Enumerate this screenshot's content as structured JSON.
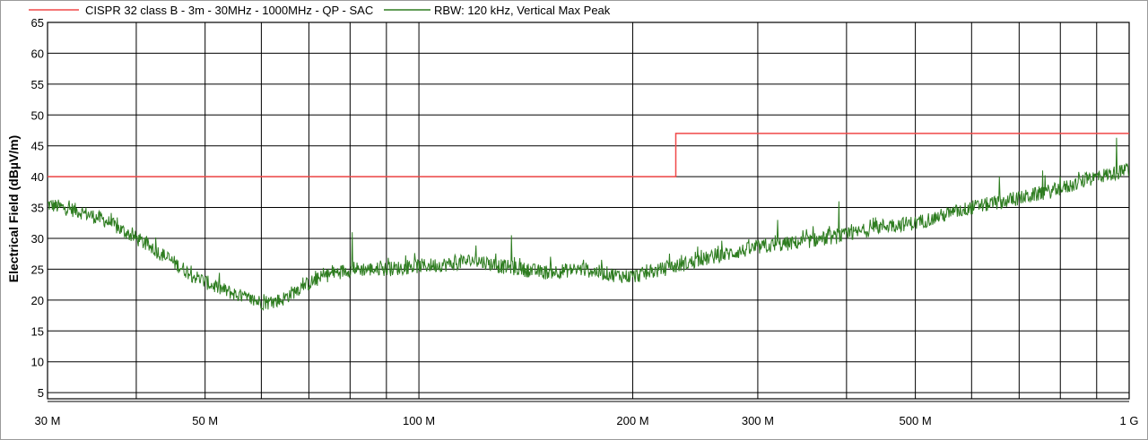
{
  "chart_data": {
    "type": "line",
    "x_scale": "log",
    "xlim_mhz": [
      30,
      1000
    ],
    "ylim": [
      4,
      65
    ],
    "ylabel": "Electrical Field (dBµV/m)",
    "xlabel": "",
    "grid": true,
    "legend_position": "top",
    "y_ticks": [
      5,
      10,
      15,
      20,
      25,
      30,
      35,
      40,
      45,
      50,
      55,
      60,
      65
    ],
    "x_ticks": [
      {
        "value": 30,
        "label": "30 M"
      },
      {
        "value": 50,
        "label": "50 M"
      },
      {
        "value": 100,
        "label": "100 M"
      },
      {
        "value": 200,
        "label": "200 M"
      },
      {
        "value": 300,
        "label": "300 M"
      },
      {
        "value": 500,
        "label": "500 M"
      },
      {
        "value": 1000,
        "label": "1 G"
      }
    ],
    "x_gridlines_mhz": [
      30,
      40,
      50,
      60,
      70,
      80,
      90,
      100,
      200,
      300,
      400,
      500,
      600,
      700,
      800,
      900,
      1000
    ],
    "series": [
      {
        "name": "CISPR 32 class B - 3m - 30MHz - 1000MHz - QP - SAC",
        "color": "#f04848",
        "kind": "step",
        "points": [
          [
            30,
            40
          ],
          [
            230,
            40
          ],
          [
            230,
            47
          ],
          [
            1000,
            47
          ]
        ]
      },
      {
        "name": "RBW: 120 kHz, Vertical Max Peak",
        "color": "#2e7d20",
        "kind": "noisy",
        "trend": [
          [
            30,
            35.5
          ],
          [
            33,
            34.5
          ],
          [
            36,
            33
          ],
          [
            40,
            30
          ],
          [
            44,
            27
          ],
          [
            48,
            24
          ],
          [
            52,
            22
          ],
          [
            55,
            21
          ],
          [
            58,
            20
          ],
          [
            61,
            19.5
          ],
          [
            64,
            20
          ],
          [
            68,
            22
          ],
          [
            74,
            24
          ],
          [
            80,
            25
          ],
          [
            90,
            25
          ],
          [
            100,
            25.5
          ],
          [
            110,
            25.8
          ],
          [
            120,
            26.5
          ],
          [
            130,
            25.5
          ],
          [
            150,
            24.5
          ],
          [
            170,
            25
          ],
          [
            190,
            24
          ],
          [
            200,
            23.8
          ],
          [
            230,
            25.5
          ],
          [
            260,
            27
          ],
          [
            300,
            28.5
          ],
          [
            350,
            29.5
          ],
          [
            400,
            30.5
          ],
          [
            450,
            32
          ],
          [
            500,
            32.5
          ],
          [
            600,
            35
          ],
          [
            700,
            36.5
          ],
          [
            800,
            38
          ],
          [
            900,
            40
          ],
          [
            1000,
            41
          ]
        ],
        "spikes": [
          [
            80.6,
            31
          ],
          [
            135,
            30.5
          ],
          [
            320,
            33
          ],
          [
            390,
            36
          ],
          [
            656,
            40
          ],
          [
            756,
            41
          ],
          [
            800,
            40
          ],
          [
            880,
            40.5
          ],
          [
            960,
            46.3
          ],
          [
            995,
            42
          ]
        ]
      }
    ]
  }
}
